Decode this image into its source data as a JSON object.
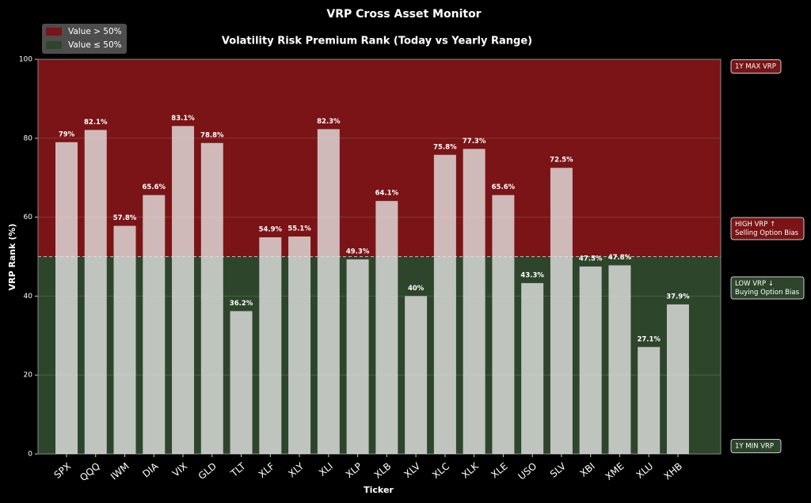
{
  "chart_data": {
    "type": "bar",
    "title": "VRP Cross Asset Monitor",
    "subtitle": "Volatility Risk Premium Rank (Today vs Yearly Range)",
    "x_label": "Ticker",
    "y_label": "VRP Rank (%)",
    "categories": [
      "SPX",
      "QQQ",
      "IWM",
      "DIA",
      "VIX",
      "GLD",
      "TLT",
      "XLF",
      "XLY",
      "XLI",
      "XLP",
      "XLB",
      "XLV",
      "XLC",
      "XLK",
      "XLE",
      "USO",
      "SLV",
      "XBI",
      "XME",
      "XLU",
      "XHB"
    ],
    "values": [
      79,
      82.1,
      57.8,
      65.6,
      83.1,
      78.8,
      36.2,
      54.9,
      55.1,
      82.3,
      49.3,
      64.1,
      40,
      75.8,
      77.3,
      65.6,
      43.3,
      72.5,
      47.5,
      47.8,
      27.1,
      37.9
    ],
    "value_labels": [
      "79%",
      "82.1%",
      "57.8%",
      "65.6%",
      "83.1%",
      "78.8%",
      "36.2%",
      "54.9%",
      "55.1%",
      "82.3%",
      "49.3%",
      "64.1%",
      "40%",
      "75.8%",
      "77.3%",
      "65.6%",
      "43.3%",
      "72.5%",
      "47.5%",
      "47.8%",
      "27.1%",
      "37.9%"
    ],
    "color": "#e8e8e8",
    "regions": [
      {
        "name": "Value > 50%",
        "color": "#7a1416",
        "range": [
          50,
          100
        ]
      },
      {
        "name": "Value ≤ 50%",
        "color": "#2d452b",
        "range": [
          0,
          50
        ]
      }
    ],
    "annotations": [
      [
        "1Y MAX VRP"
      ],
      [
        "HIGH VRP ↑",
        "Selling Option Bias"
      ],
      [
        "LOW VRP ↓",
        "Buying Option Bias"
      ],
      [
        "1Y MIN VRP"
      ]
    ],
    "ylim": [
      0,
      100
    ],
    "yticks": [
      0,
      20,
      40,
      60,
      80,
      100
    ],
    "grid": true
  }
}
